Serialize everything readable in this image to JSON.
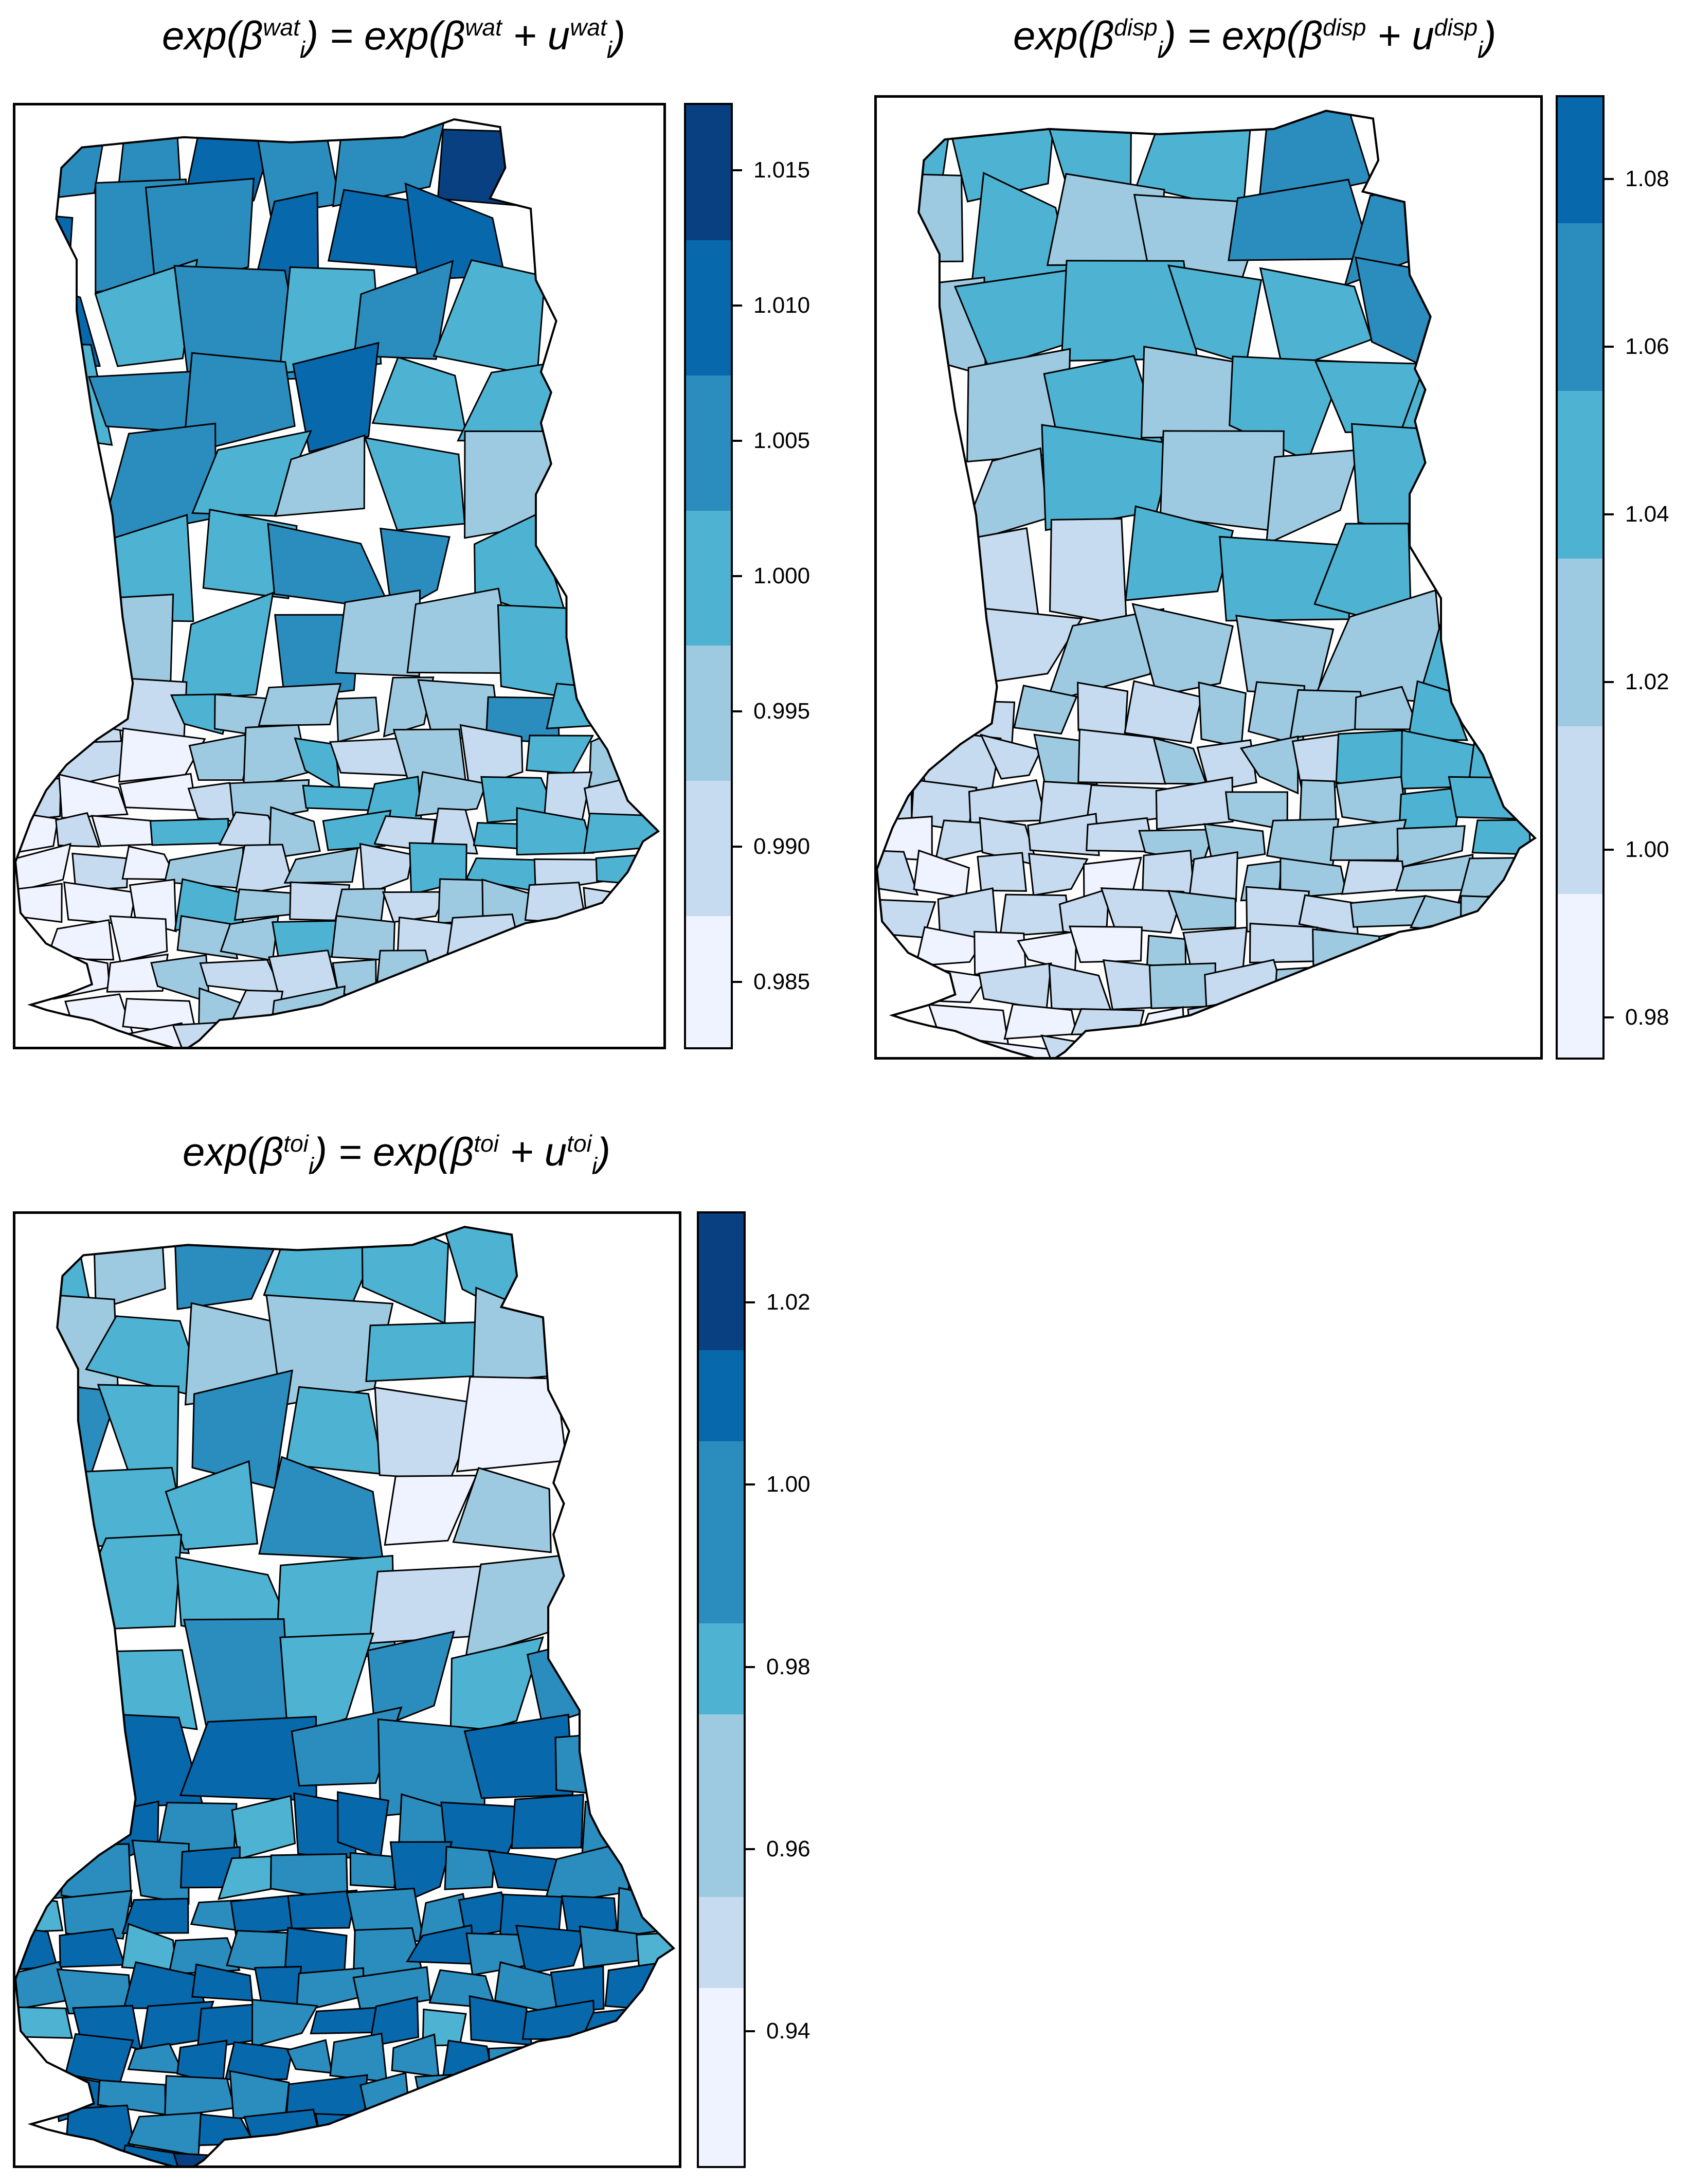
{
  "palette": [
    "#eff3ff",
    "#c6dbef",
    "#9ecae1",
    "#6baed6",
    "#3182bd",
    "#1f77b4",
    "#08519c",
    "#084594"
  ],
  "panels": [
    {
      "id": "wat",
      "title": {
        "lhs_fn": "exp(",
        "lhs_sym": "β",
        "lhs_sup": "wat",
        "lhs_sub": "i",
        "eq": ") = exp(",
        "rhs_sym": "β",
        "rhs_sup": "wat",
        "plus": " + ",
        "u": "u",
        "u_sup": "wat",
        "u_sub": "i",
        "close": ")"
      },
      "legend": {
        "breaks": [
          0.9825,
          0.9875,
          0.9925,
          0.9975,
          1.0025,
          1.0075,
          1.0125,
          1.0175
        ],
        "ticks": [
          "0.985",
          "0.990",
          "0.995",
          "1.000",
          "1.005",
          "1.010",
          "1.015"
        ],
        "colors": [
          "#eff3ff",
          "#c6dbef",
          "#9ecae1",
          "#4eb3d3",
          "#2b8cbe",
          "#0868ac",
          "#084081"
        ]
      }
    },
    {
      "id": "disp",
      "title": {
        "lhs_fn": "exp(",
        "lhs_sym": "β",
        "lhs_sup": "disp",
        "lhs_sub": "i",
        "eq": ") = exp(",
        "rhs_sym": "β",
        "rhs_sup": "disp",
        "plus": " + ",
        "u": "u",
        "u_sup": "disp",
        "u_sub": "i",
        "close": ")"
      },
      "legend": {
        "breaks": [
          0.975,
          0.995,
          1.015,
          1.035,
          1.055,
          1.075,
          1.09
        ],
        "ticks": [
          "0.98",
          "1.00",
          "1.02",
          "1.04",
          "1.06",
          "1.08"
        ],
        "colors": [
          "#eff3ff",
          "#c6dbef",
          "#9ecae1",
          "#4eb3d3",
          "#2b8cbe",
          "#0868ac"
        ]
      }
    },
    {
      "id": "toi",
      "title": {
        "lhs_fn": "exp(",
        "lhs_sym": "β",
        "lhs_sup": "toi",
        "lhs_sub": "i",
        "eq": ") = exp(",
        "rhs_sym": "β",
        "rhs_sup": "toi",
        "plus": " + ",
        "u": "u",
        "u_sup": "toi",
        "u_sub": "i",
        "close": ")"
      },
      "legend": {
        "breaks": [
          0.925,
          0.945,
          0.955,
          0.975,
          0.985,
          1.005,
          1.015,
          1.03
        ],
        "ticks": [
          "0.94",
          "0.96",
          "0.98",
          "1.00",
          "1.02"
        ],
        "colors": [
          "#eff3ff",
          "#c6dbef",
          "#9ecae1",
          "#4eb3d3",
          "#2b8cbe",
          "#0868ac",
          "#084081"
        ]
      }
    }
  ]
}
